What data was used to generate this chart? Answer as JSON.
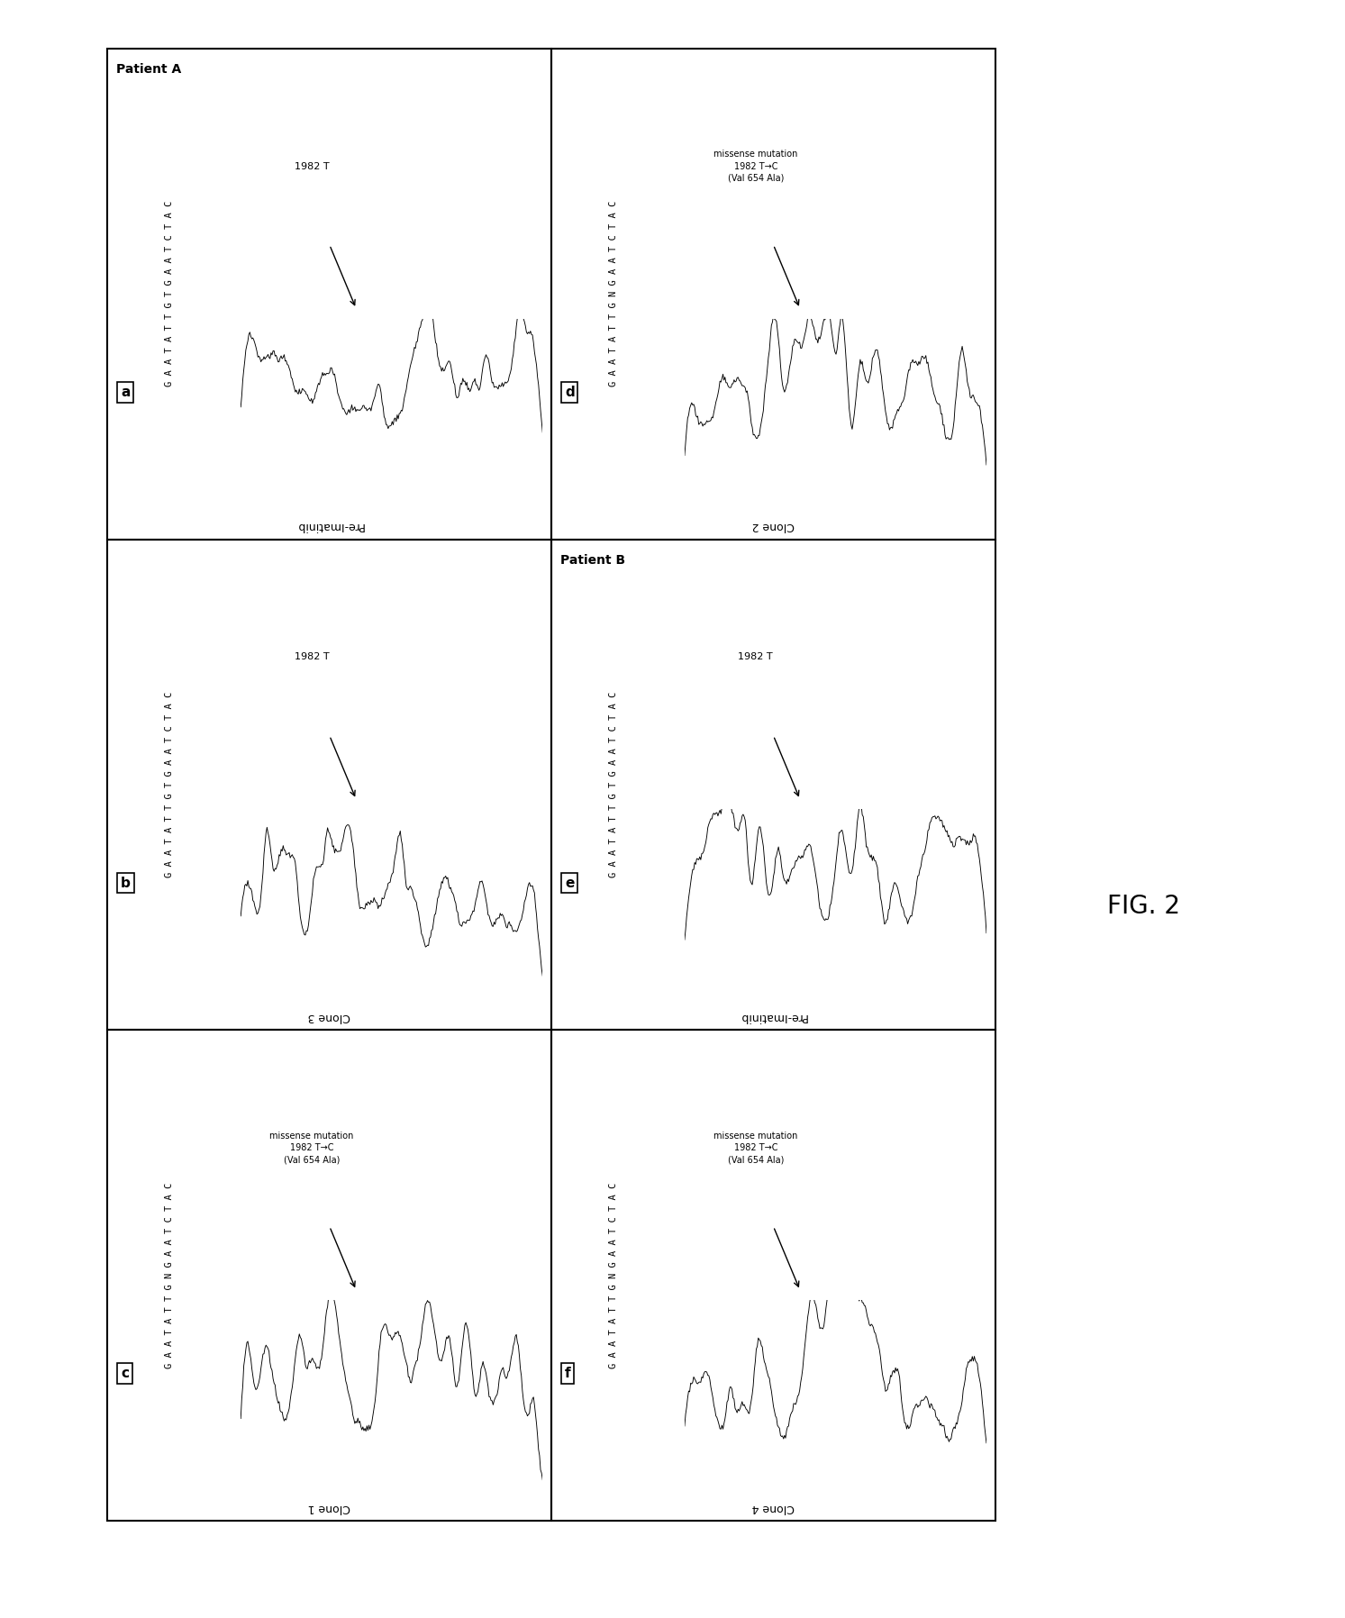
{
  "figure_width": 14.93,
  "figure_height": 17.96,
  "background_color": "#ffffff",
  "border_color": "#000000",
  "fig_label": "FIG. 2",
  "panels": [
    {
      "id": "a",
      "col": 0,
      "row": 0,
      "label": "a",
      "sequence": "G A A T A T T G T G A A T C T A C",
      "annotation": "1982 T",
      "has_mutation": false,
      "patient_label": "Patient A",
      "row_label": "Pre-Imatinib"
    },
    {
      "id": "b",
      "col": 0,
      "row": 1,
      "label": "b",
      "sequence": "G A A T A T T G T G A A T C T A C",
      "annotation": "1982 T",
      "has_mutation": false,
      "patient_label": null,
      "row_label": "Clone 3"
    },
    {
      "id": "c",
      "col": 0,
      "row": 2,
      "label": "c",
      "sequence": "G A A T A T T G N G A A T C T A C",
      "annotation": "missense mutation\n1982 T→C\n(Val 654 Ala)",
      "has_mutation": true,
      "patient_label": null,
      "row_label": "Clone 1"
    },
    {
      "id": "d",
      "col": 1,
      "row": 0,
      "label": "d",
      "sequence": "G A A T A T T G N G A A T C T A C",
      "annotation": "missense mutation\n1982 T→C\n(Val 654 Ala)",
      "has_mutation": true,
      "patient_label": null,
      "row_label": "Clone 2"
    },
    {
      "id": "e",
      "col": 1,
      "row": 1,
      "label": "e",
      "sequence": "G A A T A T T G T G A A T C T A C",
      "annotation": "1982 T",
      "has_mutation": false,
      "patient_label": "Patient B",
      "row_label": "Pre-Imatinib"
    },
    {
      "id": "f",
      "col": 1,
      "row": 2,
      "label": "f",
      "sequence": "G A A T A T T G N G A A T C T A C",
      "annotation": "missense mutation\n1982 T→C\n(Val 654 Ala)",
      "has_mutation": true,
      "patient_label": null,
      "row_label": "Clone 4"
    }
  ]
}
